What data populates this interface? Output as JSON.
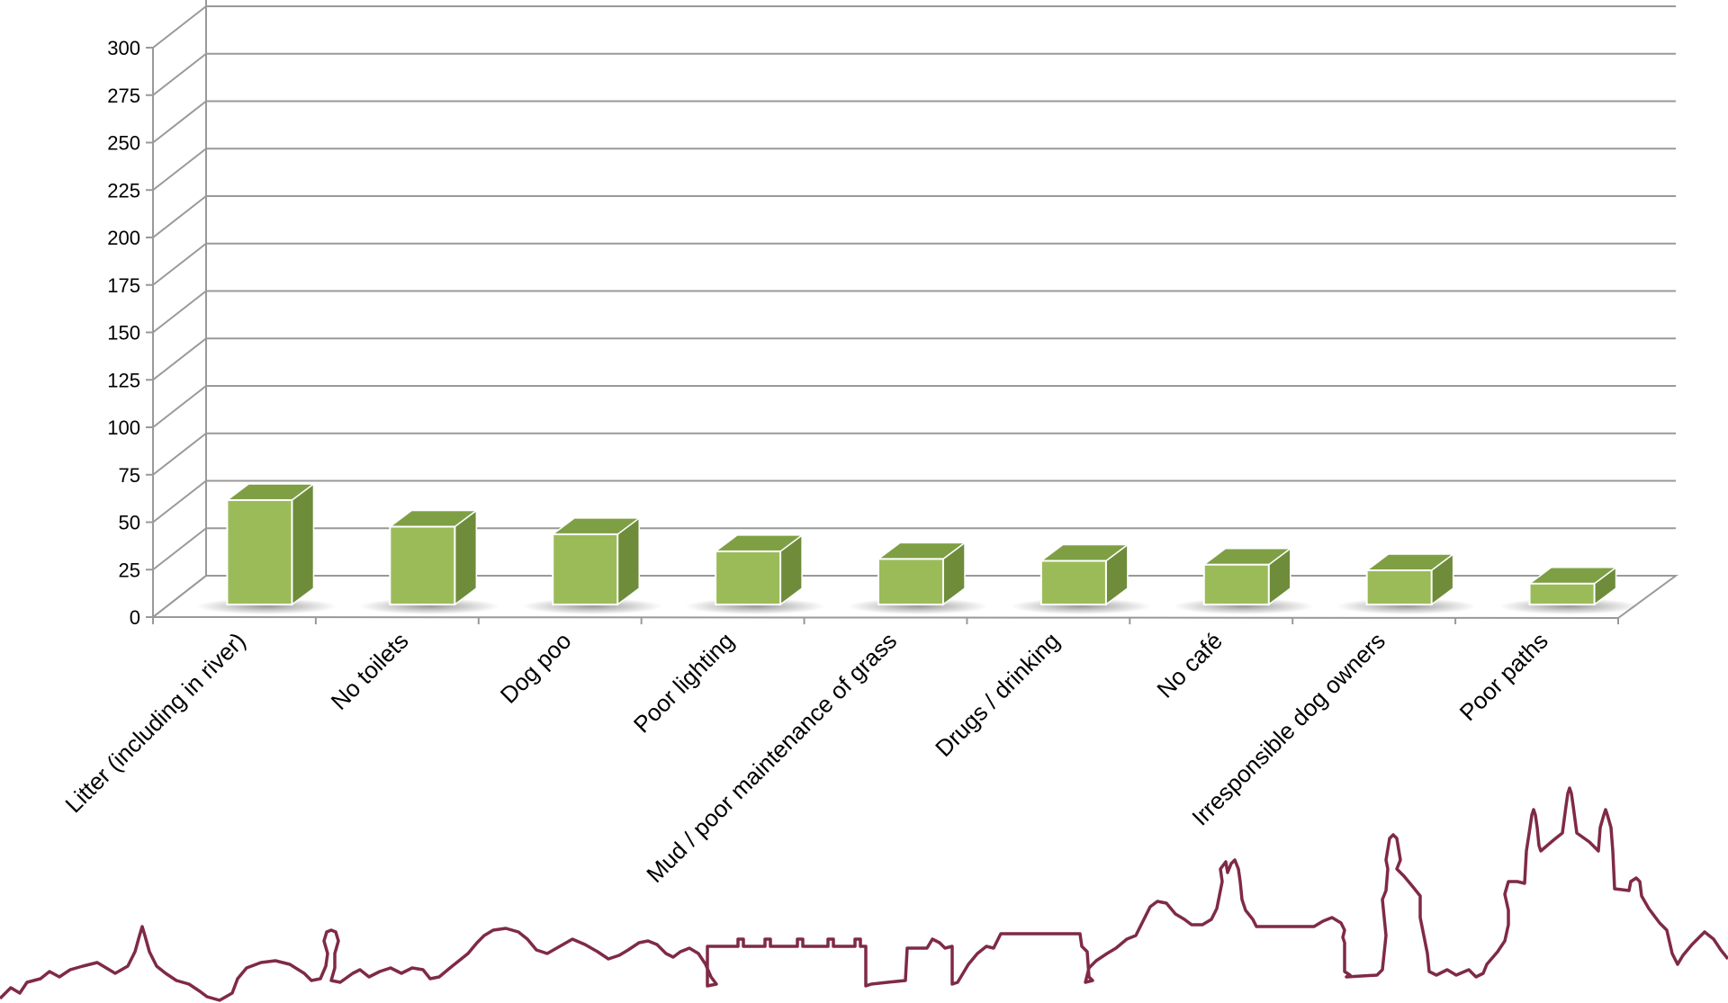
{
  "chart_data": {
    "type": "bar",
    "title": "",
    "xlabel": "",
    "ylabel": "",
    "ylim": [
      0,
      300
    ],
    "y_ticks": [
      0,
      25,
      50,
      75,
      100,
      125,
      150,
      175,
      200,
      225,
      250,
      275,
      300
    ],
    "grid": true,
    "legend": "none",
    "style": "3d-column",
    "categories": [
      "Litter (including in river)",
      "No toilets",
      "Dog poo",
      "Poor lighting",
      "Mud / poor maintenance of grass",
      "Drugs / drinking",
      "No café",
      "Irresponsible dog owners",
      "Poor paths"
    ],
    "values": [
      55,
      41,
      37,
      28,
      24,
      23,
      21,
      18,
      11
    ]
  },
  "colors": {
    "bar_front": "#9bbb59",
    "bar_side": "#6e8c3a",
    "bar_top": "#7f9f44",
    "gridline": "#999999",
    "skyline": "#7f2a45"
  },
  "decoration": {
    "skyline_icon": "city-skyline-outline"
  }
}
